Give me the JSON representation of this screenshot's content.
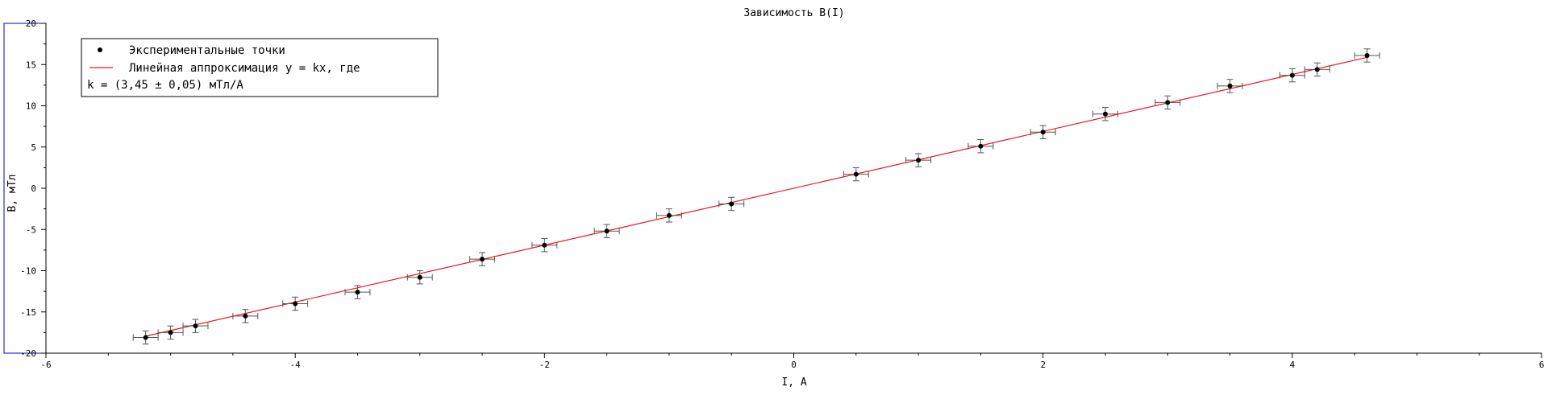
{
  "chart_data": {
    "type": "scatter",
    "title": "Зависимость B(I)",
    "xlabel": "I, A",
    "ylabel": "B, мТл",
    "xlim": [
      -6,
      6
    ],
    "ylim": [
      -20,
      20
    ],
    "x_ticks": [
      -6,
      -4,
      -2,
      0,
      2,
      4,
      6
    ],
    "y_ticks": [
      -20,
      -15,
      -10,
      -5,
      0,
      5,
      10,
      15,
      20
    ],
    "x_tick_labels": [
      "-6",
      "-4",
      "-2",
      "0",
      "2",
      "4",
      "6"
    ],
    "y_tick_labels": [
      "-20",
      "-15",
      "-10",
      "-5",
      "0",
      "5",
      "10",
      "15",
      "20"
    ],
    "x_minor_step": 0.5,
    "y_minor_step": 2.5,
    "grid": false,
    "legend_position": "top-left",
    "legend": {
      "points_label": "Экспериментальные точки",
      "line_label": "Линейная аппроксимация y = kx, где",
      "coef_label": "k = (3,45 ± 0,05) мТл/A"
    },
    "series": [
      {
        "name": "Экспериментальные точки",
        "kind": "points",
        "color": "#000000",
        "x": [
          -5.2,
          -5.0,
          -4.8,
          -4.4,
          -4.0,
          -3.5,
          -3.0,
          -2.5,
          -2.0,
          -1.5,
          -1.0,
          -0.5,
          0.5,
          1.0,
          1.5,
          2.0,
          2.5,
          3.0,
          3.5,
          4.0,
          4.2,
          4.6
        ],
        "y": [
          -18.1,
          -17.5,
          -16.7,
          -15.5,
          -14.0,
          -12.6,
          -10.8,
          -8.6,
          -6.9,
          -5.2,
          -3.3,
          -1.9,
          1.7,
          3.4,
          5.1,
          6.8,
          9.0,
          10.4,
          12.4,
          13.7,
          14.4,
          16.1
        ],
        "x_err": 0.1,
        "y_err": 0.8
      },
      {
        "name": "Линейная аппроксимация y = kx, где",
        "kind": "line",
        "color": "#e8191f",
        "slope": 3.45,
        "x_range": [
          -5.2,
          4.6
        ]
      }
    ]
  },
  "colors": {
    "axis": "#000000",
    "errorbar": "#555555",
    "fit_line": "#e8191f",
    "left_axis_box": "#0000cc"
  }
}
